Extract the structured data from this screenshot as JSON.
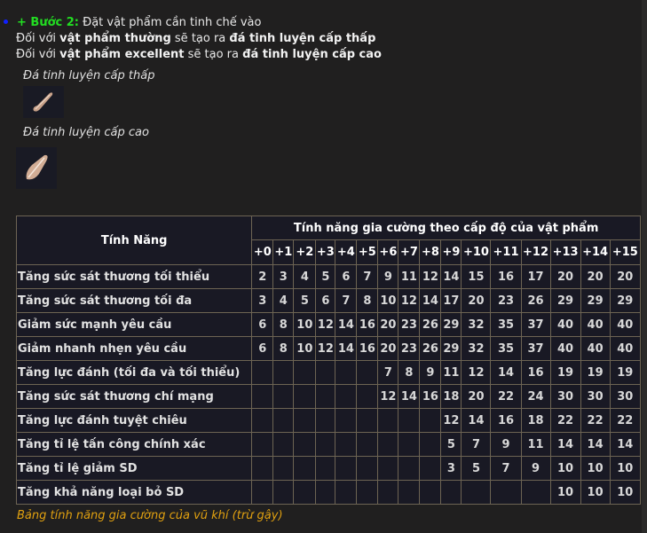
{
  "intro": {
    "step_label": "+ Bước 2:",
    "step_text": " Đặt vật phẩm cần tinh chế vào",
    "line2": {
      "pre": "Đối với ",
      "item": "vật phẩm thường",
      "mid": " sẽ tạo ra ",
      "result": "đá tinh luyện cấp thấp"
    },
    "line3": {
      "pre": "Đối với ",
      "item": "vật phẩm excellent",
      "mid": " sẽ tạo ra ",
      "result": "đá tinh luyện cấp cao"
    }
  },
  "stones": [
    {
      "caption": "Đá tinh luyện cấp thấp",
      "icon": "feather-stone-low-icon"
    },
    {
      "caption": "Đá tinh luyện cấp cao",
      "icon": "feather-stone-high-icon"
    }
  ],
  "table": {
    "feature_header": "Tính Năng",
    "group_header": "Tính năng gia cường theo cấp độ của vật phẩm",
    "levels": [
      "+0",
      "+1",
      "+2",
      "+3",
      "+4",
      "+5",
      "+6",
      "+7",
      "+8",
      "+9",
      "+10",
      "+11",
      "+12",
      "+13",
      "+14",
      "+15"
    ],
    "rows": [
      {
        "name": "Tăng sức sát thương tối thiểu",
        "values": [
          "2",
          "3",
          "4",
          "5",
          "6",
          "7",
          "9",
          "11",
          "12",
          "14",
          "15",
          "16",
          "17",
          "20",
          "20",
          "20"
        ]
      },
      {
        "name": "Tăng sức sát thương tối đa",
        "values": [
          "3",
          "4",
          "5",
          "6",
          "7",
          "8",
          "10",
          "12",
          "14",
          "17",
          "20",
          "23",
          "26",
          "29",
          "29",
          "29"
        ]
      },
      {
        "name": "Giảm sức mạnh yêu cầu",
        "values": [
          "6",
          "8",
          "10",
          "12",
          "14",
          "16",
          "20",
          "23",
          "26",
          "29",
          "32",
          "35",
          "37",
          "40",
          "40",
          "40"
        ]
      },
      {
        "name": "Giảm nhanh nhẹn yêu cầu",
        "values": [
          "6",
          "8",
          "10",
          "12",
          "14",
          "16",
          "20",
          "23",
          "26",
          "29",
          "32",
          "35",
          "37",
          "40",
          "40",
          "40"
        ]
      },
      {
        "name": "Tăng lực đánh (tối đa và tối thiểu)",
        "values": [
          "",
          "",
          "",
          "",
          "",
          "",
          "7",
          "8",
          "9",
          "11",
          "12",
          "14",
          "16",
          "19",
          "19",
          "19"
        ]
      },
      {
        "name": "Tăng sức sát thương chí mạng",
        "values": [
          "",
          "",
          "",
          "",
          "",
          "",
          "12",
          "14",
          "16",
          "18",
          "20",
          "22",
          "24",
          "30",
          "30",
          "30"
        ]
      },
      {
        "name": "Tăng lực đánh tuyệt chiêu",
        "values": [
          "",
          "",
          "",
          "",
          "",
          "",
          "",
          "",
          "",
          "12",
          "14",
          "16",
          "18",
          "22",
          "22",
          "22"
        ]
      },
      {
        "name": "Tăng tỉ lệ tấn công chính xác",
        "values": [
          "",
          "",
          "",
          "",
          "",
          "",
          "",
          "",
          "",
          "5",
          "7",
          "9",
          "11",
          "14",
          "14",
          "14"
        ]
      },
      {
        "name": "Tăng tỉ lệ giảm SD",
        "values": [
          "",
          "",
          "",
          "",
          "",
          "",
          "",
          "",
          "",
          "3",
          "5",
          "7",
          "9",
          "10",
          "10",
          "10"
        ]
      },
      {
        "name": "Tăng khả năng loại bỏ SD",
        "values": [
          "",
          "",
          "",
          "",
          "",
          "",
          "",
          "",
          "",
          "",
          "",
          "",
          "",
          "10",
          "10",
          "10"
        ]
      }
    ],
    "caption": "Bảng tính năng gia cường của vũ khí (trừ gậy)"
  }
}
